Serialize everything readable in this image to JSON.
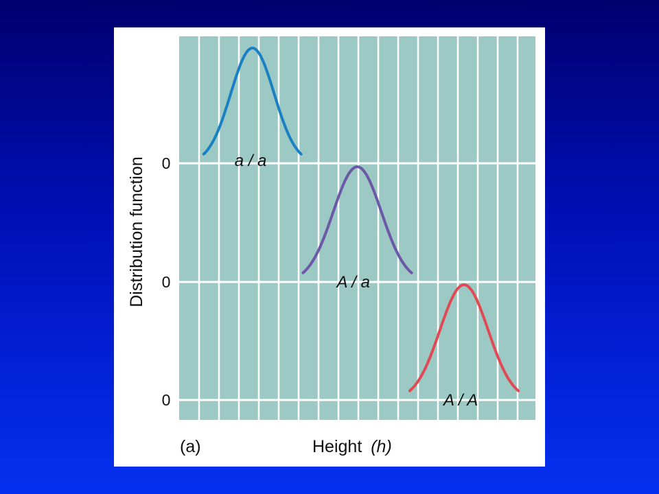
{
  "chart_data": {
    "type": "line",
    "title": "",
    "panel_label": "(a)",
    "xlabel": {
      "main": "Height",
      "symbol": "(h)"
    },
    "ylabel": "Distribution function",
    "grid": true,
    "rows": [
      {
        "genotype": "a / a",
        "zero_label": "0",
        "color": "#1a80c4",
        "peak_x": 3.4,
        "half_width": 2.6,
        "relative_height": 1.0
      },
      {
        "genotype": "A / a",
        "zero_label": "0",
        "color": "#6b58a6",
        "peak_x": 9.0,
        "half_width": 2.9,
        "relative_height": 1.0
      },
      {
        "genotype": "A / A",
        "zero_label": "0",
        "color": "#e04a55",
        "peak_x": 14.7,
        "half_width": 2.9,
        "relative_height": 1.0
      }
    ],
    "xlim": [
      0,
      18
    ]
  },
  "colors": {
    "plot_background": "#9cc9c4",
    "grid": "#ffffff",
    "panel": "#ffffff"
  }
}
